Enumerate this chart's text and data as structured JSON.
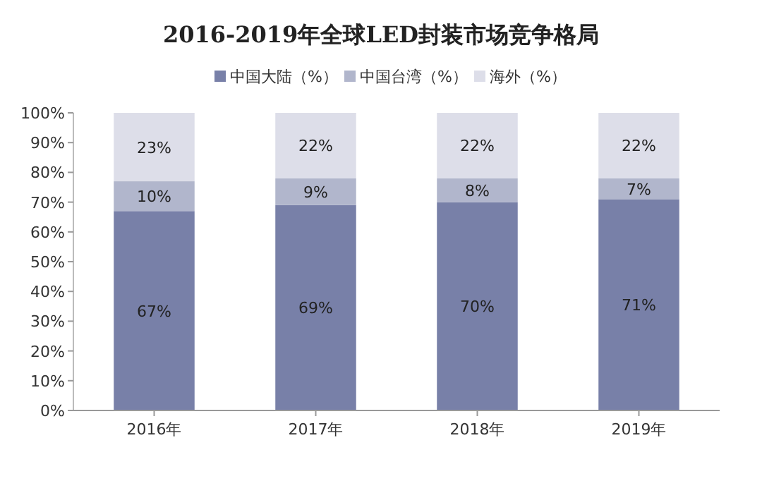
{
  "chart_data": {
    "type": "bar",
    "title": "2016-2019年全球LED封装市场竞争格局",
    "stacked": true,
    "legend": "top",
    "categories": [
      "2016年",
      "2017年",
      "2018年",
      "2019年"
    ],
    "series": [
      {
        "name": "中国大陆（%）",
        "color": "#7880a8",
        "values": [
          67,
          69,
          70,
          71
        ],
        "value_labels": [
          "67%",
          "69%",
          "70%",
          "71%"
        ]
      },
      {
        "name": "中国台湾（%）",
        "color": "#b1b6cc",
        "values": [
          10,
          9,
          8,
          7
        ],
        "value_labels": [
          "10%",
          "9%",
          "8%",
          "7%"
        ]
      },
      {
        "name": "海外（%）",
        "color": "#dddee9",
        "values": [
          23,
          22,
          22,
          22
        ],
        "value_labels": [
          "23%",
          "22%",
          "22%",
          "22%"
        ]
      }
    ],
    "ylim": [
      0,
      100
    ],
    "yticks": [
      {
        "value": 0,
        "label": "0%"
      },
      {
        "value": 10,
        "label": "10%"
      },
      {
        "value": 20,
        "label": "20%"
      },
      {
        "value": 30,
        "label": "30%"
      },
      {
        "value": 40,
        "label": "40%"
      },
      {
        "value": 50,
        "label": "50%"
      },
      {
        "value": 60,
        "label": "60%"
      },
      {
        "value": 70,
        "label": "70%"
      },
      {
        "value": 80,
        "label": "80%"
      },
      {
        "value": 90,
        "label": "90%"
      },
      {
        "value": 100,
        "label": "100%"
      }
    ]
  }
}
